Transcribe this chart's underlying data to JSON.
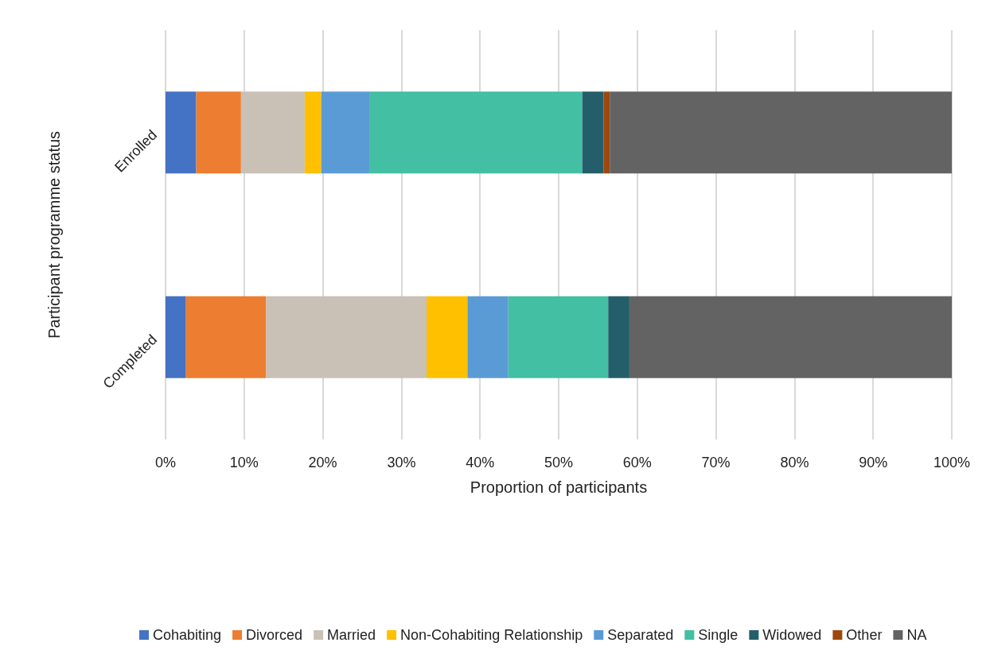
{
  "chart_data": {
    "type": "bar",
    "orientation": "horizontal",
    "stacked": true,
    "xlabel": "Proportion of participants",
    "ylabel": "Participant programme status",
    "categories": [
      "Enrolled",
      "Completed"
    ],
    "series": [
      {
        "name": "Cohabiting",
        "color": "#4472c4",
        "values": [
          3.9,
          2.6
        ]
      },
      {
        "name": "Divorced",
        "color": "#ed7d31",
        "values": [
          5.7,
          10.2
        ]
      },
      {
        "name": "Married",
        "color": "#c9c0b6",
        "values": [
          8.1,
          20.4
        ]
      },
      {
        "name": "Non-Cohabiting Relationship",
        "color": "#ffc000",
        "values": [
          2.1,
          5.2
        ]
      },
      {
        "name": "Separated",
        "color": "#5b9bd5",
        "values": [
          6.2,
          5.2
        ]
      },
      {
        "name": "Single",
        "color": "#43bfa3",
        "values": [
          27.0,
          12.7
        ]
      },
      {
        "name": "Widowed",
        "color": "#255e6b",
        "values": [
          2.7,
          2.7
        ]
      },
      {
        "name": "Other",
        "color": "#9e480e",
        "values": [
          0.8,
          0
        ]
      },
      {
        "name": "NA",
        "color": "#636363",
        "values": [
          43.5,
          41.0
        ]
      }
    ],
    "xlim": [
      0,
      100
    ],
    "xticks": [
      {
        "value": 0,
        "label": "0%"
      },
      {
        "value": 10,
        "label": "10%"
      },
      {
        "value": 20,
        "label": "20%"
      },
      {
        "value": 30,
        "label": "30%"
      },
      {
        "value": 40,
        "label": "40%"
      },
      {
        "value": 50,
        "label": "50%"
      },
      {
        "value": 60,
        "label": "60%"
      },
      {
        "value": 70,
        "label": "70%"
      },
      {
        "value": 80,
        "label": "80%"
      },
      {
        "value": 90,
        "label": "90%"
      },
      {
        "value": 100,
        "label": "100%"
      }
    ],
    "grid": "x",
    "legend": "bottom"
  }
}
